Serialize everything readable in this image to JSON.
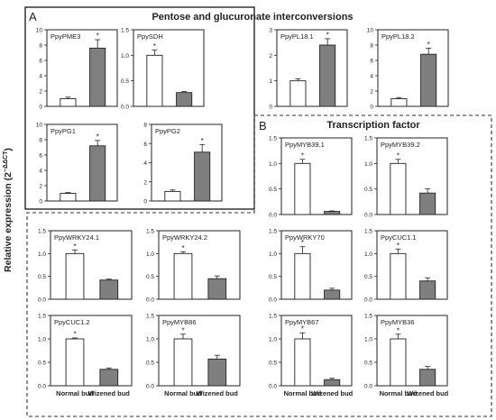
{
  "figure": {
    "ylabel": "Relative expression (2",
    "ylabel_sup": "−ΔΔCT",
    "ylabel_close": ")",
    "colors": {
      "normal": "#ffffff",
      "wizened": "#7f7f7f",
      "axis": "#222222",
      "panelA_border": "#000000",
      "panelB_border": "#333333"
    }
  },
  "panel_a": {
    "letter": "A",
    "title": "Pentose and glucuronate interconversions"
  },
  "panel_b": {
    "letter": "B",
    "title": "Transcription factor"
  },
  "chart_data": [
    {
      "type": "bar",
      "title": "PpyPME3",
      "categories": [
        "Normal bud",
        "Wizened bud"
      ],
      "values": [
        1.0,
        7.6
      ],
      "errors": [
        0.2,
        1.1
      ],
      "significant": [
        false,
        true
      ],
      "ylim": [
        0,
        10
      ],
      "yticks": [
        "0",
        "2",
        "4",
        "6",
        "8",
        "10"
      ]
    },
    {
      "type": "bar",
      "title": "PpySDH",
      "categories": [
        "Normal bud",
        "Wizened bud"
      ],
      "values": [
        1.0,
        0.27
      ],
      "errors": [
        0.1,
        0.02
      ],
      "significant": [
        true,
        false
      ],
      "ylim": [
        0,
        1.5
      ],
      "yticks": [
        "0.0",
        "0.5",
        "1.0",
        "1.5"
      ]
    },
    {
      "type": "bar",
      "title": "PpyPL18.1",
      "categories": [
        "Normal bud",
        "Wizened bud"
      ],
      "values": [
        1.0,
        2.4
      ],
      "errors": [
        0.08,
        0.25
      ],
      "significant": [
        false,
        true
      ],
      "ylim": [
        0,
        3
      ],
      "yticks": [
        "0",
        "1",
        "2",
        "3"
      ]
    },
    {
      "type": "bar",
      "title": "PpyPL18.2",
      "categories": [
        "Normal bud",
        "Wizened bud"
      ],
      "values": [
        1.0,
        6.8
      ],
      "errors": [
        0.15,
        0.8
      ],
      "significant": [
        false,
        true
      ],
      "ylim": [
        0,
        10
      ],
      "yticks": [
        "0",
        "2",
        "4",
        "6",
        "8",
        "10"
      ]
    },
    {
      "type": "bar",
      "title": "PpyPG1",
      "categories": [
        "Normal bud",
        "Wizened bud"
      ],
      "values": [
        1.0,
        7.2
      ],
      "errors": [
        0.1,
        0.7
      ],
      "significant": [
        false,
        true
      ],
      "ylim": [
        0,
        10
      ],
      "yticks": [
        "0",
        "2",
        "4",
        "6",
        "8",
        "10"
      ]
    },
    {
      "type": "bar",
      "title": "PpyPG2",
      "categories": [
        "Normal bud",
        "Wizened bud"
      ],
      "values": [
        1.0,
        5.1
      ],
      "errors": [
        0.15,
        0.8
      ],
      "significant": [
        false,
        true
      ],
      "ylim": [
        0,
        8
      ],
      "yticks": [
        "0",
        "2",
        "4",
        "6",
        "8"
      ]
    },
    {
      "type": "bar",
      "title": "PpyMYB39.1",
      "categories": [
        "Normal bud",
        "Wizened bud"
      ],
      "values": [
        1.0,
        0.06
      ],
      "errors": [
        0.08,
        0.01
      ],
      "significant": [
        true,
        false
      ],
      "ylim": [
        0,
        1.5
      ],
      "yticks": [
        "0.0",
        "0.5",
        "1.0",
        "1.5"
      ]
    },
    {
      "type": "bar",
      "title": "PpyMYB39.2",
      "categories": [
        "Normal bud",
        "Wizened bud"
      ],
      "values": [
        1.0,
        0.42
      ],
      "errors": [
        0.08,
        0.08
      ],
      "significant": [
        true,
        false
      ],
      "ylim": [
        0,
        1.5
      ],
      "yticks": [
        "0.0",
        "0.5",
        "1.0",
        "1.5"
      ]
    },
    {
      "type": "bar",
      "title": "PpyWRKY24.1",
      "categories": [
        "Normal bud",
        "Wizened bud"
      ],
      "values": [
        1.0,
        0.42
      ],
      "errors": [
        0.08,
        0.02
      ],
      "significant": [
        true,
        false
      ],
      "ylim": [
        0,
        1.5
      ],
      "yticks": [
        "0.0",
        "0.5",
        "1.0",
        "1.5"
      ]
    },
    {
      "type": "bar",
      "title": "PpyWRKY24.2",
      "categories": [
        "Normal bud",
        "Wizened bud"
      ],
      "values": [
        1.0,
        0.45
      ],
      "errors": [
        0.04,
        0.06
      ],
      "significant": [
        true,
        false
      ],
      "ylim": [
        0,
        1.5
      ],
      "yticks": [
        "0.0",
        "0.5",
        "1.0",
        "1.5"
      ]
    },
    {
      "type": "bar",
      "title": "PpyWRKY70",
      "categories": [
        "Normal bud",
        "Wizened bud"
      ],
      "values": [
        1.0,
        0.2
      ],
      "errors": [
        0.15,
        0.04
      ],
      "significant": [
        true,
        false
      ],
      "ylim": [
        0,
        1.5
      ],
      "yticks": [
        "0.0",
        "0.5",
        "1.0",
        "1.5"
      ]
    },
    {
      "type": "bar",
      "title": "PpyCUC1.1",
      "categories": [
        "Normal bud",
        "Wizened bud"
      ],
      "values": [
        1.0,
        0.4
      ],
      "errors": [
        0.1,
        0.07
      ],
      "significant": [
        true,
        false
      ],
      "ylim": [
        0,
        1.5
      ],
      "yticks": [
        "0.0",
        "0.5",
        "1.0",
        "1.5"
      ]
    },
    {
      "type": "bar",
      "title": "PpyCUC1.2",
      "categories": [
        "Normal bud",
        "Wizened bud"
      ],
      "values": [
        1.0,
        0.35
      ],
      "errors": [
        0.02,
        0.03
      ],
      "significant": [
        true,
        false
      ],
      "ylim": [
        0,
        1.5
      ],
      "yticks": [
        "0.0",
        "0.5",
        "1.0",
        "1.5"
      ]
    },
    {
      "type": "bar",
      "title": "PpyMYB86",
      "categories": [
        "Normal bud",
        "Wizened bud"
      ],
      "values": [
        1.0,
        0.57
      ],
      "errors": [
        0.1,
        0.08
      ],
      "significant": [
        true,
        false
      ],
      "ylim": [
        0,
        1.5
      ],
      "yticks": [
        "0.0",
        "0.5",
        "1.0",
        "1.5"
      ]
    },
    {
      "type": "bar",
      "title": "PpyMYB67",
      "categories": [
        "Normal bud",
        "Wizened bud"
      ],
      "values": [
        1.0,
        0.13
      ],
      "errors": [
        0.13,
        0.03
      ],
      "significant": [
        true,
        false
      ],
      "ylim": [
        0,
        1.5
      ],
      "yticks": [
        "0.0",
        "0.5",
        "1.0",
        "1.5"
      ]
    },
    {
      "type": "bar",
      "title": "PpyMYB36",
      "categories": [
        "Normal bud",
        "Wizened bud"
      ],
      "values": [
        1.0,
        0.35
      ],
      "errors": [
        0.1,
        0.06
      ],
      "significant": [
        true,
        false
      ],
      "ylim": [
        0,
        1.5
      ],
      "yticks": [
        "0.0",
        "0.5",
        "1.0",
        "1.5"
      ]
    }
  ]
}
